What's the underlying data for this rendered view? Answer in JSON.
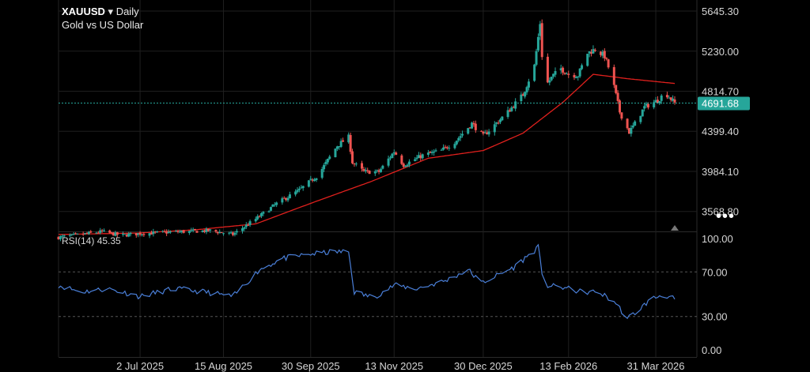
{
  "header": {
    "symbol": "XAUUSD",
    "caret": "▾",
    "timeframe": "Daily",
    "subtitle": "Gold vs US Dollar"
  },
  "rsi": {
    "label": "RSI(14)",
    "value": "45.35"
  },
  "colors": {
    "background": "#000000",
    "bull": "#26a69a",
    "bear": "#ef5350",
    "ma": "#e0201d",
    "rsi": "#4a7fd8",
    "grid": "#1f1f1f",
    "last_price": "#26a69a",
    "text": "#d6d6d6"
  },
  "icons": {
    "more": "more-dots-icon",
    "marker": "triangle-up-icon"
  },
  "more_label": "•••",
  "chart_data": [
    {
      "type": "candlestick",
      "title": "XAUUSD Daily",
      "subtitle": "Gold vs US Dollar",
      "y_ticks": [
        5645.3,
        5230.0,
        4814.7,
        4399.4,
        3984.1,
        3568.8
      ],
      "y_tick_labels": [
        "5645.30",
        "5230.00",
        "4814.70",
        "4399.40",
        "3984.10",
        "3568.80"
      ],
      "ylim": [
        3370,
        5760
      ],
      "x_tick_labels": [
        "2 Jul 2025",
        "15 Aug 2025",
        "30 Sep 2025",
        "13 Nov 2025",
        "30 Dec 2025",
        "13 Feb 2026",
        "31 Mar 2026"
      ],
      "last_price": 4691.68,
      "last_price_label": "4691.68",
      "ma_anchors": [
        {
          "date": "2025-05-20",
          "value": 3330
        },
        {
          "date": "2025-07-01",
          "value": 3345
        },
        {
          "date": "2025-08-01",
          "value": 3380
        },
        {
          "date": "2025-09-01",
          "value": 3440
        },
        {
          "date": "2025-10-01",
          "value": 3660
        },
        {
          "date": "2025-11-01",
          "value": 3880
        },
        {
          "date": "2025-12-01",
          "value": 4120
        },
        {
          "date": "2025-12-30",
          "value": 4200
        },
        {
          "date": "2026-01-20",
          "value": 4380
        },
        {
          "date": "2026-02-10",
          "value": 4700
        },
        {
          "date": "2026-02-26",
          "value": 4990
        },
        {
          "date": "2026-03-16",
          "value": 4945
        },
        {
          "date": "2026-04-10",
          "value": 4895
        }
      ],
      "anchors": [
        {
          "date": "2025-05-20",
          "value": 3300
        },
        {
          "date": "2025-06-01",
          "value": 3330
        },
        {
          "date": "2025-06-12",
          "value": 3360
        },
        {
          "date": "2025-06-22",
          "value": 3320
        },
        {
          "date": "2025-07-02",
          "value": 3340
        },
        {
          "date": "2025-07-20",
          "value": 3355
        },
        {
          "date": "2025-08-08",
          "value": 3370
        },
        {
          "date": "2025-08-20",
          "value": 3330
        },
        {
          "date": "2025-09-01",
          "value": 3490
        },
        {
          "date": "2025-09-12",
          "value": 3650
        },
        {
          "date": "2025-09-24",
          "value": 3790
        },
        {
          "date": "2025-10-04",
          "value": 3950
        },
        {
          "date": "2025-10-14",
          "value": 4250
        },
        {
          "date": "2025-10-20",
          "value": 4340
        },
        {
          "date": "2025-10-22",
          "value": 4080
        },
        {
          "date": "2025-10-28",
          "value": 3980
        },
        {
          "date": "2025-11-05",
          "value": 3980
        },
        {
          "date": "2025-11-13",
          "value": 4190
        },
        {
          "date": "2025-11-18",
          "value": 4050
        },
        {
          "date": "2025-11-28",
          "value": 4150
        },
        {
          "date": "2025-12-08",
          "value": 4200
        },
        {
          "date": "2025-12-15",
          "value": 4290
        },
        {
          "date": "2025-12-24",
          "value": 4480
        },
        {
          "date": "2025-12-30",
          "value": 4350
        },
        {
          "date": "2026-01-12",
          "value": 4600
        },
        {
          "date": "2026-01-20",
          "value": 4780
        },
        {
          "date": "2026-01-26",
          "value": 5080
        },
        {
          "date": "2026-01-29",
          "value": 5520
        },
        {
          "date": "2026-01-31",
          "value": 4850
        },
        {
          "date": "2026-02-05",
          "value": 4980
        },
        {
          "date": "2026-02-09",
          "value": 5050
        },
        {
          "date": "2026-02-13",
          "value": 4990
        },
        {
          "date": "2026-02-18",
          "value": 4980
        },
        {
          "date": "2026-02-23",
          "value": 5210
        },
        {
          "date": "2026-02-27",
          "value": 5250
        },
        {
          "date": "2026-03-04",
          "value": 5180
        },
        {
          "date": "2026-03-08",
          "value": 4950
        },
        {
          "date": "2026-03-12",
          "value": 4600
        },
        {
          "date": "2026-03-17",
          "value": 4390
        },
        {
          "date": "2026-03-20",
          "value": 4480
        },
        {
          "date": "2026-03-25",
          "value": 4650
        },
        {
          "date": "2026-04-01",
          "value": 4720
        },
        {
          "date": "2026-04-05",
          "value": 4800
        },
        {
          "date": "2026-04-10",
          "value": 4692
        }
      ]
    },
    {
      "type": "line",
      "title": "RSI(14)",
      "current_value": 45.35,
      "y_ticks": [
        100,
        70,
        30,
        0
      ],
      "y_tick_labels": [
        "100.00",
        "70.00",
        "30.00",
        "0.00"
      ],
      "ylim": [
        0,
        100
      ],
      "anchors": [
        {
          "date": "2025-05-20",
          "value": 58
        },
        {
          "date": "2025-06-01",
          "value": 52
        },
        {
          "date": "2025-06-15",
          "value": 55
        },
        {
          "date": "2025-07-02",
          "value": 48
        },
        {
          "date": "2025-07-20",
          "value": 55
        },
        {
          "date": "2025-08-05",
          "value": 52
        },
        {
          "date": "2025-08-20",
          "value": 48
        },
        {
          "date": "2025-09-03",
          "value": 72
        },
        {
          "date": "2025-09-15",
          "value": 82
        },
        {
          "date": "2025-09-30",
          "value": 86
        },
        {
          "date": "2025-10-12",
          "value": 88
        },
        {
          "date": "2025-10-20",
          "value": 88
        },
        {
          "date": "2025-10-23",
          "value": 52
        },
        {
          "date": "2025-11-02",
          "value": 47
        },
        {
          "date": "2025-11-13",
          "value": 58
        },
        {
          "date": "2025-11-25",
          "value": 55
        },
        {
          "date": "2025-12-10",
          "value": 62
        },
        {
          "date": "2025-12-22",
          "value": 72
        },
        {
          "date": "2025-12-29",
          "value": 60
        },
        {
          "date": "2026-01-15",
          "value": 74
        },
        {
          "date": "2026-01-28",
          "value": 92
        },
        {
          "date": "2026-01-31",
          "value": 58
        },
        {
          "date": "2026-02-10",
          "value": 56
        },
        {
          "date": "2026-02-20",
          "value": 52
        },
        {
          "date": "2026-03-01",
          "value": 52
        },
        {
          "date": "2026-03-10",
          "value": 42
        },
        {
          "date": "2026-03-16",
          "value": 28
        },
        {
          "date": "2026-03-22",
          "value": 36
        },
        {
          "date": "2026-03-28",
          "value": 45
        },
        {
          "date": "2026-04-04",
          "value": 50
        },
        {
          "date": "2026-04-10",
          "value": 45.35
        }
      ]
    }
  ]
}
